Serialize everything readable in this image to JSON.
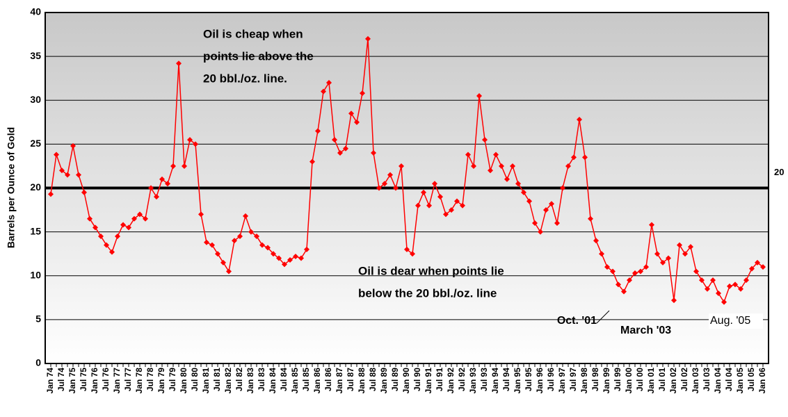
{
  "chart_data": {
    "type": "line",
    "y_label": "Barrels per Ounce of Gold",
    "categories": [
      "Jan 74",
      null,
      "Jul 74",
      null,
      "Jan 75",
      null,
      "Jul 75",
      null,
      "Jan 76",
      null,
      "Jul 76",
      null,
      "Jan 77",
      null,
      "Jul 77",
      null,
      "Jan 78",
      null,
      "Jul 78",
      null,
      "Jan 79",
      null,
      "Jul 79",
      null,
      "Jan 80",
      null,
      "Jul 80",
      null,
      "Jan 81",
      null,
      "Jul 81",
      null,
      "Jan 82",
      null,
      "Jul 82",
      null,
      "Jan 83",
      null,
      "Jul 83",
      null,
      "Jan 84",
      null,
      "Jul 84",
      null,
      "Jan 85",
      null,
      "Jul 85",
      null,
      "Jan 86",
      null,
      "Jul 86",
      null,
      "Jan 87",
      null,
      "Jul 87",
      null,
      "Jan 88",
      null,
      "Jul 88",
      null,
      "Jan 89",
      null,
      "Jul 89",
      null,
      "Jan 90",
      null,
      "Jul 90",
      null,
      "Jan 91",
      null,
      "Jul 91",
      null,
      "Jan 92",
      null,
      "Jul 92",
      null,
      "Jan 93",
      null,
      "Jul 93",
      null,
      "Jan 94",
      null,
      "Jul 94",
      null,
      "Jan 95",
      null,
      "Jul 95",
      null,
      "Jan 96",
      null,
      "Jul 96",
      null,
      "Jan 97",
      null,
      "Jul 97",
      null,
      "Jan 98",
      null,
      "Jul 98",
      null,
      "Jan 99",
      null,
      "Jul 99",
      null,
      "Jan 00",
      null,
      "Jul 00",
      null,
      "Jan 01",
      null,
      "Jul 01",
      null,
      "Jan 02",
      null,
      "Jul 02",
      null,
      "Jan 03",
      null,
      "Jul 03",
      null,
      "Jan 04",
      null,
      "Jul 04",
      null,
      "Jan 05",
      null,
      "Jul 05",
      null,
      "Jan 06"
    ],
    "series": [
      {
        "name": "Barrels per Ounce of Gold",
        "color": "#ff0000",
        "values": [
          19.3,
          23.8,
          22,
          21.5,
          24.8,
          21.5,
          19.5,
          16.5,
          15.5,
          14.5,
          13.5,
          12.7,
          14.5,
          15.8,
          15.5,
          16.5,
          17,
          16.5,
          20,
          19,
          21,
          20.5,
          22.5,
          34.2,
          22.5,
          25.5,
          25,
          17,
          13.8,
          13.5,
          12.5,
          11.5,
          10.5,
          14,
          14.5,
          16.8,
          15,
          14.5,
          13.5,
          13.2,
          12.5,
          12,
          11.3,
          11.8,
          12.2,
          12,
          13,
          23,
          26.5,
          31,
          32,
          25.5,
          24,
          24.5,
          28.5,
          27.5,
          30.8,
          37,
          24,
          20,
          20.5,
          21.5,
          20,
          22.5,
          13,
          12.5,
          18,
          19.5,
          18,
          20.5,
          19,
          17,
          17.5,
          18.5,
          18,
          23.8,
          22.5,
          30.5,
          25.5,
          22,
          23.8,
          22.5,
          21,
          22.5,
          20.5,
          19.5,
          18.5,
          16,
          15,
          17.5,
          18.2,
          16,
          20,
          22.5,
          23.5,
          27.8,
          23.5,
          16.5,
          14,
          12.5,
          11,
          10.5,
          9,
          8.2,
          9.5,
          10.3,
          10.5,
          11,
          15.8,
          12.5,
          11.5,
          12,
          7.2,
          13.5,
          12.5,
          13.3,
          10.5,
          9.5,
          8.5,
          9.5,
          8,
          7,
          8.8,
          9,
          8.5,
          9.5,
          10.8,
          11.5,
          11
        ]
      }
    ],
    "ylim": [
      0,
      40
    ],
    "yticks": [
      0,
      5,
      10,
      15,
      20,
      25,
      30,
      35,
      40
    ],
    "grid": true,
    "reference_line": 20,
    "annotations": [
      "Oil is cheap when",
      "points lie above the",
      "20 bbl./oz. line.",
      "Oil is dear when points lie",
      "below the 20 bbl./oz. line",
      "Oct. '01",
      "March '03",
      "Aug. '05"
    ]
  }
}
